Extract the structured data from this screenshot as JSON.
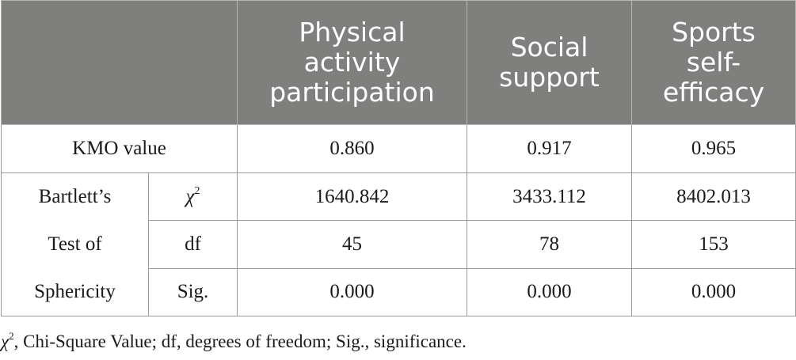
{
  "table": {
    "columns": [
      "Physical activity participation",
      "Social support",
      "Sports self-efficacy"
    ],
    "column_lines": [
      [
        "Physical",
        "activity",
        "participation"
      ],
      [
        "Social",
        "support"
      ],
      [
        "Sports",
        "self-",
        "efficacy"
      ]
    ],
    "kmo": {
      "label": "KMO value",
      "values": [
        "0.860",
        "0.917",
        "0.965"
      ]
    },
    "bartlett": {
      "label": "Bartlett's Test of Sphericity",
      "label_lines": [
        "Bartlett’s",
        "Test of",
        "Sphericity"
      ],
      "rows": [
        {
          "stat_symbol": "χ",
          "stat_sup": "2",
          "values": [
            "1640.842",
            "3433.112",
            "8402.013"
          ]
        },
        {
          "stat": "df",
          "values": [
            "45",
            "78",
            "153"
          ]
        },
        {
          "stat": "Sig.",
          "values": [
            "0.000",
            "0.000",
            "0.000"
          ]
        }
      ]
    }
  },
  "footnote": {
    "symbol": "χ",
    "sup": "2",
    "text": ", Chi-Square Value; df, degrees of freedom; Sig., significance."
  }
}
